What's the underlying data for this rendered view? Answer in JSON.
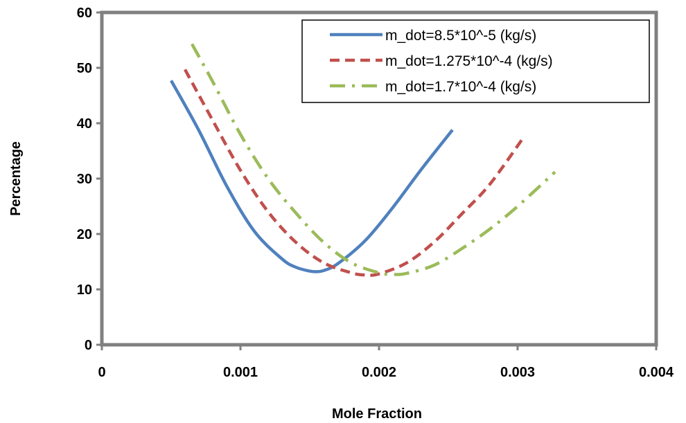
{
  "chart_data": {
    "type": "line",
    "title": "",
    "xlabel": "Mole Fraction",
    "ylabel": "Percentage",
    "xlim": [
      0,
      0.004
    ],
    "ylim": [
      0,
      60
    ],
    "xticks": [
      0,
      0.001,
      0.002,
      0.003,
      0.004
    ],
    "xtick_labels": [
      "0",
      "0.001",
      "0.002",
      "0.003",
      "0.004"
    ],
    "yticks": [
      0,
      10,
      20,
      30,
      40,
      50,
      60
    ],
    "ytick_labels": [
      "0",
      "10",
      "20",
      "30",
      "40",
      "50",
      "60"
    ],
    "grid": false,
    "legend_position": "top-right",
    "series": [
      {
        "name": "m_dot=8.5*10^-5 (kg/s)",
        "color": "#4F81BD",
        "dash": "solid",
        "x": [
          0.0005,
          0.0007,
          0.0009,
          0.0011,
          0.0013,
          0.0014,
          0.0015,
          0.00155,
          0.0016,
          0.0017,
          0.0019,
          0.0021,
          0.0023,
          0.00253
        ],
        "y": [
          47.7,
          38.7,
          28.7,
          20.5,
          15.5,
          14.0,
          13.3,
          13.2,
          13.4,
          14.6,
          18.8,
          24.8,
          31.5,
          38.8
        ]
      },
      {
        "name": "m_dot=1.275*10^-4 (kg/s)",
        "color": "#C0504D",
        "dash": "dashed",
        "x": [
          0.0006,
          0.0008,
          0.001,
          0.0012,
          0.0014,
          0.0016,
          0.0018,
          0.0019,
          0.002,
          0.0022,
          0.0024,
          0.0026,
          0.0028,
          0.00305
        ],
        "y": [
          49.7,
          40.5,
          31.5,
          24.0,
          18.5,
          14.8,
          13.0,
          12.6,
          12.8,
          14.8,
          18.6,
          23.7,
          29.0,
          37.7
        ]
      },
      {
        "name": "m_dot=1.7*10^-4 (kg/s)",
        "color": "#9BBB59",
        "dash": "dashdot",
        "x": [
          0.00065,
          0.0008,
          0.001,
          0.0012,
          0.0014,
          0.0016,
          0.0018,
          0.002,
          0.0021,
          0.0022,
          0.0024,
          0.0026,
          0.0028,
          0.003,
          0.00327
        ],
        "y": [
          54.3,
          47.5,
          38.0,
          30.0,
          23.8,
          18.5,
          14.8,
          13.0,
          12.7,
          12.9,
          14.4,
          17.4,
          20.9,
          25.0,
          31.2
        ]
      }
    ]
  }
}
